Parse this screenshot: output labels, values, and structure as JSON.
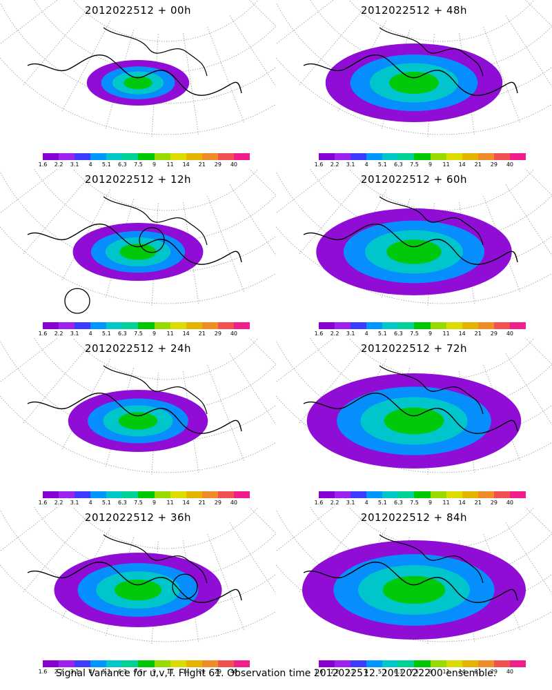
{
  "panels": [
    {
      "title": "2012022512 + 00h",
      "spread": 0.55,
      "circles": []
    },
    {
      "title": "2012022512 + 48h",
      "spread": 0.95,
      "circles": []
    },
    {
      "title": "2012022512 + 12h",
      "spread": 0.7,
      "circles": [
        [
          0.55,
          0.42
        ],
        [
          0.28,
          0.78
        ]
      ]
    },
    {
      "title": "2012022512 + 60h",
      "spread": 1.05,
      "circles": []
    },
    {
      "title": "2012022512 + 24h",
      "spread": 0.75,
      "circles": []
    },
    {
      "title": "2012022512 + 72h",
      "spread": 1.15,
      "circles": []
    },
    {
      "title": "2012022512 + 36h",
      "spread": 0.9,
      "circles": [
        [
          0.67,
          0.47
        ]
      ]
    },
    {
      "title": "2012022512 + 84h",
      "spread": 1.2,
      "circles": []
    }
  ],
  "colorbar": {
    "labels": [
      "1.6",
      "2.2",
      "3.1",
      "4",
      "5.1",
      "6.3",
      "7.5",
      "9",
      "11",
      "14",
      "21",
      "29",
      "40"
    ],
    "colors": [
      "#8a00d4",
      "#a020f0",
      "#3c3cff",
      "#0096ff",
      "#00c8c8",
      "#00d296",
      "#00c800",
      "#96dc00",
      "#dcdc00",
      "#e6b400",
      "#f08c28",
      "#f05050",
      "#f01e8c"
    ]
  },
  "footer": "Signal Variance for u,v,T. Flight 61. Observation time 2012022512. 2012022200 ensemble."
}
